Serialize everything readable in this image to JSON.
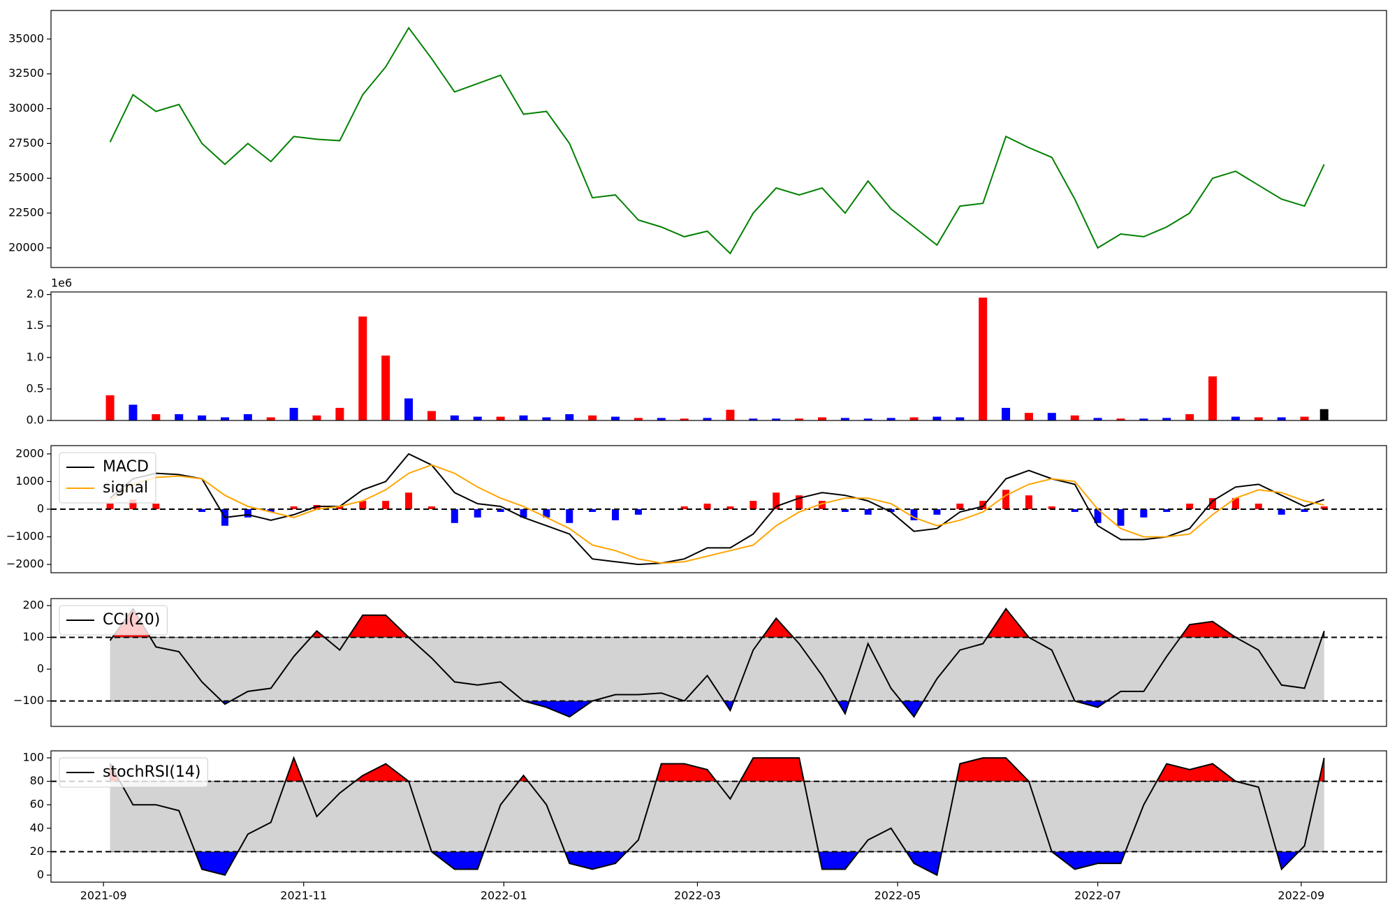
{
  "chart_data": [
    {
      "type": "line",
      "x": [
        "2021-09-03",
        "2021-09-10",
        "2021-09-17",
        "2021-09-24",
        "2021-10-01",
        "2021-10-08",
        "2021-10-15",
        "2021-10-22",
        "2021-10-29",
        "2021-11-05",
        "2021-11-12",
        "2021-11-19",
        "2021-11-26",
        "2021-12-03",
        "2021-12-10",
        "2021-12-17",
        "2021-12-24",
        "2021-12-31",
        "2022-01-07",
        "2022-01-14",
        "2022-01-21",
        "2022-01-28",
        "2022-02-04",
        "2022-02-11",
        "2022-02-18",
        "2022-02-25",
        "2022-03-04",
        "2022-03-11",
        "2022-03-18",
        "2022-03-25",
        "2022-04-01",
        "2022-04-08",
        "2022-04-15",
        "2022-04-22",
        "2022-04-29",
        "2022-05-06",
        "2022-05-13",
        "2022-05-20",
        "2022-05-27",
        "2022-06-03",
        "2022-06-10",
        "2022-06-17",
        "2022-06-24",
        "2022-07-01",
        "2022-07-08",
        "2022-07-15",
        "2022-07-22",
        "2022-07-29",
        "2022-08-05",
        "2022-08-12",
        "2022-08-19",
        "2022-08-26",
        "2022-09-02",
        "2022-09-08"
      ],
      "series": [
        {
          "color": "#008000",
          "values": [
            27600,
            31000,
            29800,
            30300,
            27500,
            26000,
            27500,
            26200,
            28000,
            27800,
            27700,
            31000,
            33000,
            35800,
            33600,
            31200,
            31800,
            32400,
            29600,
            29800,
            27500,
            23600,
            23800,
            22000,
            21500,
            20800,
            21200,
            19600,
            22500,
            24300,
            23800,
            24300,
            22500,
            24800,
            22800,
            21500,
            20200,
            23000,
            23200,
            28000,
            27200,
            26500,
            23500,
            20000,
            21000,
            20800,
            21500,
            22500,
            25000,
            25500,
            24500,
            23500,
            23000,
            26000
          ]
        }
      ],
      "xlim": [
        "2021-08-16",
        "2022-09-27"
      ],
      "ylim": [
        18590,
        37050
      ],
      "yticks": [
        20000,
        22500,
        25000,
        27500,
        30000,
        32500,
        35000
      ]
    },
    {
      "type": "bar",
      "x": [
        "2021-09-03",
        "2021-09-10",
        "2021-09-17",
        "2021-09-24",
        "2021-10-01",
        "2021-10-08",
        "2021-10-15",
        "2021-10-22",
        "2021-10-29",
        "2021-11-05",
        "2021-11-12",
        "2021-11-19",
        "2021-11-26",
        "2021-12-03",
        "2021-12-10",
        "2021-12-17",
        "2021-12-24",
        "2021-12-31",
        "2022-01-07",
        "2022-01-14",
        "2022-01-21",
        "2022-01-28",
        "2022-02-04",
        "2022-02-11",
        "2022-02-18",
        "2022-02-25",
        "2022-03-04",
        "2022-03-11",
        "2022-03-18",
        "2022-03-25",
        "2022-04-01",
        "2022-04-08",
        "2022-04-15",
        "2022-04-22",
        "2022-04-29",
        "2022-05-06",
        "2022-05-13",
        "2022-05-20",
        "2022-05-27",
        "2022-06-03",
        "2022-06-10",
        "2022-06-17",
        "2022-06-24",
        "2022-07-01",
        "2022-07-08",
        "2022-07-15",
        "2022-07-22",
        "2022-07-29",
        "2022-08-05",
        "2022-08-12",
        "2022-08-19",
        "2022-08-26",
        "2022-09-02",
        "2022-09-08"
      ],
      "values": [
        0.4,
        0.25,
        0.1,
        0.1,
        0.08,
        0.05,
        0.1,
        0.05,
        0.2,
        0.08,
        0.2,
        1.65,
        1.03,
        0.35,
        0.15,
        0.08,
        0.06,
        0.06,
        0.08,
        0.05,
        0.1,
        0.08,
        0.06,
        0.04,
        0.04,
        0.03,
        0.04,
        0.17,
        0.03,
        0.03,
        0.03,
        0.05,
        0.04,
        0.03,
        0.04,
        0.05,
        0.06,
        0.05,
        1.95,
        0.2,
        0.12,
        0.12,
        0.08,
        0.04,
        0.03,
        0.03,
        0.04,
        0.1,
        0.7,
        0.06,
        0.05,
        0.05,
        0.06,
        0.18
      ],
      "colors": [
        "red",
        "blue",
        "red",
        "blue",
        "blue",
        "blue",
        "blue",
        "red",
        "blue",
        "red",
        "red",
        "red",
        "red",
        "blue",
        "red",
        "blue",
        "blue",
        "red",
        "blue",
        "blue",
        "blue",
        "red",
        "blue",
        "red",
        "blue",
        "red",
        "blue",
        "red",
        "blue",
        "blue",
        "red",
        "red",
        "blue",
        "blue",
        "blue",
        "red",
        "blue",
        "blue",
        "red",
        "blue",
        "red",
        "blue",
        "red",
        "blue",
        "red",
        "blue",
        "blue",
        "red",
        "red",
        "blue",
        "red",
        "blue",
        "red",
        "black"
      ],
      "offset_label": "1e6",
      "xlim": [
        "2021-08-16",
        "2022-09-27"
      ],
      "ylim": [
        0,
        2.04
      ],
      "yticks": [
        {
          "value": 0,
          "label": "0.0"
        },
        0.5,
        {
          "value": 1,
          "label": "1.0"
        },
        1.5,
        {
          "value": 2,
          "label": "2.0"
        }
      ]
    },
    {
      "type": "line",
      "x": [
        "2021-09-03",
        "2021-09-10",
        "2021-09-17",
        "2021-09-24",
        "2021-10-01",
        "2021-10-08",
        "2021-10-15",
        "2021-10-22",
        "2021-10-29",
        "2021-11-05",
        "2021-11-12",
        "2021-11-19",
        "2021-11-26",
        "2021-12-03",
        "2021-12-10",
        "2021-12-17",
        "2021-12-24",
        "2021-12-31",
        "2022-01-07",
        "2022-01-14",
        "2022-01-21",
        "2022-01-28",
        "2022-02-04",
        "2022-02-11",
        "2022-02-18",
        "2022-02-25",
        "2022-03-04",
        "2022-03-11",
        "2022-03-18",
        "2022-03-25",
        "2022-04-01",
        "2022-04-08",
        "2022-04-15",
        "2022-04-22",
        "2022-04-29",
        "2022-05-06",
        "2022-05-13",
        "2022-05-20",
        "2022-05-27",
        "2022-06-03",
        "2022-06-10",
        "2022-06-17",
        "2022-06-24",
        "2022-07-01",
        "2022-07-08",
        "2022-07-15",
        "2022-07-22",
        "2022-07-29",
        "2022-08-05",
        "2022-08-12",
        "2022-08-19",
        "2022-08-26",
        "2022-09-02",
        "2022-09-08"
      ],
      "series": [
        {
          "name": "MACD",
          "color": "#000000",
          "values": [
            400,
            1100,
            1300,
            1250,
            1100,
            -300,
            -200,
            -400,
            -200,
            100,
            100,
            700,
            1000,
            2000,
            1600,
            600,
            200,
            100,
            -300,
            -600,
            -900,
            -1800,
            -1900,
            -2000,
            -1950,
            -1800,
            -1400,
            -1400,
            -900,
            100,
            400,
            600,
            500,
            300,
            -100,
            -800,
            -700,
            -100,
            100,
            1100,
            1400,
            1100,
            900,
            -600,
            -1100,
            -1100,
            -1000,
            -700,
            300,
            800,
            900,
            500,
            100,
            350
          ]
        },
        {
          "name": "signal",
          "color": "#ffa500",
          "values": [
            300,
            900,
            1150,
            1200,
            1100,
            500,
            100,
            -100,
            -300,
            0,
            100,
            300,
            700,
            1300,
            1600,
            1300,
            800,
            400,
            100,
            -300,
            -700,
            -1300,
            -1500,
            -1800,
            -1950,
            -1900,
            -1700,
            -1500,
            -1300,
            -600,
            -100,
            200,
            400,
            400,
            200,
            -300,
            -600,
            -400,
            -100,
            500,
            900,
            1100,
            1000,
            0,
            -700,
            -1000,
            -1000,
            -900,
            -200,
            400,
            700,
            600,
            300,
            150
          ]
        }
      ],
      "histogram": {
        "positive_color": "red",
        "negative_color": "blue",
        "values": [
          200,
          350,
          200,
          0,
          -100,
          -600,
          -300,
          -100,
          100,
          150,
          100,
          300,
          300,
          600,
          100,
          -500,
          -300,
          -100,
          -300,
          -300,
          -500,
          -100,
          -400,
          -200,
          0,
          100,
          200,
          100,
          300,
          600,
          500,
          300,
          -100,
          -200,
          -100,
          -400,
          -200,
          200,
          300,
          700,
          500,
          100,
          -100,
          -500,
          -600,
          -300,
          -100,
          200,
          400,
          400,
          200,
          -200,
          -100,
          100
        ]
      },
      "hlines": [
        0
      ],
      "legend": "upper left",
      "xlim": [
        "2021-08-16",
        "2022-09-27"
      ],
      "ylim": [
        -2300,
        2300
      ],
      "yticks": [
        {
          "value": -2000,
          "label": "−2000"
        },
        {
          "value": -1000,
          "label": "−1000"
        },
        0,
        1000,
        2000
      ]
    },
    {
      "type": "line",
      "x": [
        "2021-09-03",
        "2021-09-10",
        "2021-09-17",
        "2021-09-24",
        "2021-10-01",
        "2021-10-08",
        "2021-10-15",
        "2021-10-22",
        "2021-10-29",
        "2021-11-05",
        "2021-11-12",
        "2021-11-19",
        "2021-11-26",
        "2021-12-03",
        "2021-12-10",
        "2021-12-17",
        "2021-12-24",
        "2021-12-31",
        "2022-01-07",
        "2022-01-14",
        "2022-01-21",
        "2022-01-28",
        "2022-02-04",
        "2022-02-11",
        "2022-02-18",
        "2022-02-25",
        "2022-03-04",
        "2022-03-11",
        "2022-03-18",
        "2022-03-25",
        "2022-04-01",
        "2022-04-08",
        "2022-04-15",
        "2022-04-22",
        "2022-04-29",
        "2022-05-06",
        "2022-05-13",
        "2022-05-20",
        "2022-05-27",
        "2022-06-03",
        "2022-06-10",
        "2022-06-17",
        "2022-06-24",
        "2022-07-01",
        "2022-07-08",
        "2022-07-15",
        "2022-07-22",
        "2022-07-29",
        "2022-08-05",
        "2022-08-12",
        "2022-08-19",
        "2022-08-26",
        "2022-09-02",
        "2022-09-08"
      ],
      "series": [
        {
          "name": "CCI(20)",
          "color": "#000000",
          "values": [
            90,
            190,
            70,
            55,
            -40,
            -110,
            -70,
            -60,
            40,
            120,
            60,
            170,
            170,
            100,
            35,
            -40,
            -50,
            -40,
            -100,
            -120,
            -150,
            -100,
            -80,
            -80,
            -75,
            -100,
            -20,
            -130,
            60,
            160,
            80,
            -20,
            -140,
            80,
            -60,
            -150,
            -30,
            60,
            80,
            190,
            100,
            60,
            -100,
            -120,
            -70,
            -70,
            40,
            140,
            150,
            100,
            60,
            -50,
            -60,
            120
          ]
        }
      ],
      "hlines": [
        -100,
        100
      ],
      "band_color": "#d3d3d3",
      "above_color": "red",
      "below_color": "blue",
      "legend": "upper left",
      "xlim": [
        "2021-08-16",
        "2022-09-27"
      ],
      "ylim": [
        -180,
        222
      ],
      "yticks": [
        {
          "value": -100,
          "label": "−100"
        },
        0,
        100,
        200
      ]
    },
    {
      "type": "line",
      "x": [
        "2021-09-03",
        "2021-09-10",
        "2021-09-17",
        "2021-09-24",
        "2021-10-01",
        "2021-10-08",
        "2021-10-15",
        "2021-10-22",
        "2021-10-29",
        "2021-11-05",
        "2021-11-12",
        "2021-11-19",
        "2021-11-26",
        "2021-12-03",
        "2021-12-10",
        "2021-12-17",
        "2021-12-24",
        "2021-12-31",
        "2022-01-07",
        "2022-01-14",
        "2022-01-21",
        "2022-01-28",
        "2022-02-04",
        "2022-02-11",
        "2022-02-18",
        "2022-02-25",
        "2022-03-04",
        "2022-03-11",
        "2022-03-18",
        "2022-03-25",
        "2022-04-01",
        "2022-04-08",
        "2022-04-15",
        "2022-04-22",
        "2022-04-29",
        "2022-05-06",
        "2022-05-13",
        "2022-05-20",
        "2022-05-27",
        "2022-06-03",
        "2022-06-10",
        "2022-06-17",
        "2022-06-24",
        "2022-07-01",
        "2022-07-08",
        "2022-07-15",
        "2022-07-22",
        "2022-07-29",
        "2022-08-05",
        "2022-08-12",
        "2022-08-19",
        "2022-08-26",
        "2022-09-02",
        "2022-09-08"
      ],
      "series": [
        {
          "name": "stochRSI(14)",
          "color": "#000000",
          "values": [
            95,
            60,
            60,
            55,
            5,
            0,
            35,
            45,
            100,
            50,
            70,
            85,
            95,
            80,
            20,
            5,
            5,
            60,
            85,
            60,
            10,
            5,
            10,
            30,
            95,
            95,
            90,
            65,
            100,
            100,
            100,
            5,
            5,
            30,
            40,
            10,
            0,
            95,
            100,
            100,
            80,
            20,
            5,
            10,
            10,
            60,
            95,
            90,
            95,
            80,
            75,
            5,
            25,
            100
          ]
        }
      ],
      "hlines": [
        20,
        80
      ],
      "band_color": "#d3d3d3",
      "above_color": "red",
      "below_color": "blue",
      "legend": "upper left",
      "xlim": [
        "2021-08-16",
        "2022-09-27"
      ],
      "ylim": [
        -6,
        106
      ],
      "yticks": [
        0,
        20,
        40,
        60,
        80,
        100
      ],
      "xticks": [
        {
          "value": "2021-09-01",
          "label": "2021-09"
        },
        {
          "value": "2021-11-01",
          "label": "2021-11"
        },
        {
          "value": "2022-01-01",
          "label": "2022-01"
        },
        {
          "value": "2022-03-01",
          "label": "2022-03"
        },
        {
          "value": "2022-05-01",
          "label": "2022-05"
        },
        {
          "value": "2022-07-01",
          "label": "2022-07"
        },
        {
          "value": "2022-09-01",
          "label": "2022-09"
        }
      ]
    }
  ]
}
